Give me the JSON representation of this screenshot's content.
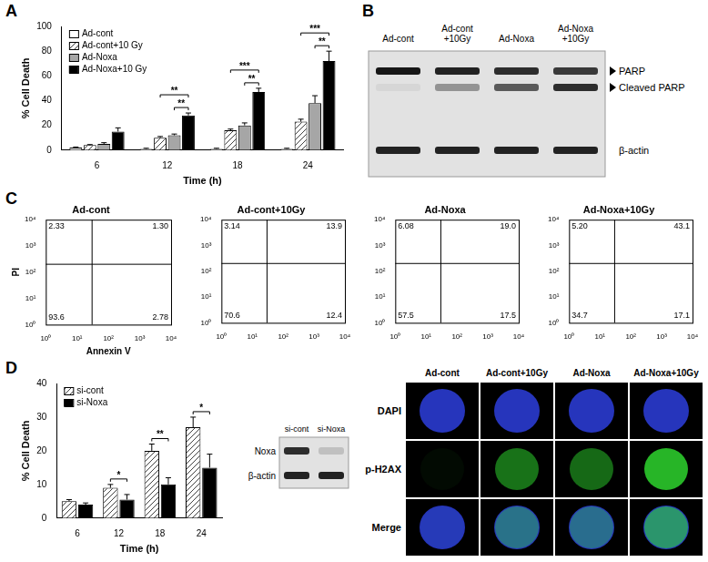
{
  "panel_letters": [
    "A",
    "B",
    "C",
    "D"
  ],
  "chart_data": [
    {
      "type": "bar",
      "x_label": "Time (h)",
      "y_label": "% Cell Death",
      "categories": [
        "6",
        "12",
        "18",
        "24"
      ],
      "series": [
        {
          "name": "Ad-cont",
          "color": "#ffffff",
          "values": [
            2,
            1,
            1,
            1
          ],
          "error": [
            0.5,
            0.5,
            0.5,
            0.5
          ]
        },
        {
          "name": "Ad-cont+10 Gy",
          "color": "#404040",
          "line_style": "hatched",
          "values": [
            4,
            10,
            16,
            23
          ],
          "error": [
            0.5,
            1,
            1,
            2
          ]
        },
        {
          "name": "Ad-Noxa",
          "color": "#a6a6a6",
          "values": [
            5,
            12,
            20,
            38
          ],
          "error": [
            1,
            1,
            2,
            6
          ]
        },
        {
          "name": "Ad-Noxa+10 Gy",
          "color": "#000000",
          "values": [
            15,
            28,
            47,
            72
          ],
          "error": [
            3,
            2,
            3,
            8
          ]
        }
      ],
      "ylim": [
        0,
        100
      ],
      "yticks": [
        0,
        20,
        40,
        60,
        80,
        100
      ],
      "grid": false,
      "legend": "top-left",
      "brackets": [
        {
          "x": "12",
          "from": "Ad-cont+10 Gy",
          "to": "Ad-Noxa+10 Gy",
          "text": "**"
        },
        {
          "x": "12",
          "from": "Ad-Noxa",
          "to": "Ad-Noxa+10 Gy",
          "text": "**"
        },
        {
          "x": "18",
          "from": "Ad-cont+10 Gy",
          "to": "Ad-Noxa+10 Gy",
          "text": "***"
        },
        {
          "x": "18",
          "from": "Ad-Noxa",
          "to": "Ad-Noxa+10 Gy",
          "text": "**"
        },
        {
          "x": "24",
          "from": "Ad-cont+10 Gy",
          "to": "Ad-Noxa+10 Gy",
          "text": "***"
        },
        {
          "x": "24",
          "from": "Ad-Noxa",
          "to": "Ad-Noxa+10 Gy",
          "text": "**"
        }
      ]
    },
    {
      "type": "bar",
      "x_label": "Time (h)",
      "y_label": "% Cell Death",
      "categories": [
        "6",
        "12",
        "18",
        "24"
      ],
      "series": [
        {
          "name": "si-cont",
          "color": "#404040",
          "line_style": "hatched",
          "values": [
            5,
            9,
            20,
            27
          ],
          "error": [
            0.5,
            1,
            2,
            3
          ]
        },
        {
          "name": "si-Noxa",
          "color": "#000000",
          "values": [
            4,
            5.5,
            10,
            15
          ],
          "error": [
            0.5,
            1.5,
            2,
            4
          ]
        }
      ],
      "ylim": [
        0,
        40
      ],
      "yticks": [
        0,
        10,
        20,
        30,
        40
      ],
      "grid": false,
      "legend": "top-left",
      "brackets": [
        {
          "x": "12",
          "from": "si-cont",
          "to": "si-Noxa",
          "text": "*"
        },
        {
          "x": "18",
          "from": "si-cont",
          "to": "si-Noxa",
          "text": "**"
        },
        {
          "x": "24",
          "from": "si-cont",
          "to": "si-Noxa",
          "text": "*"
        }
      ]
    }
  ],
  "blot_B": {
    "lanes": [
      "Ad-cont",
      "Ad-cont+10Gy",
      "Ad-Noxa",
      "Ad-Noxa+10Gy"
    ],
    "rows": [
      {
        "label": "PARP",
        "arrow": true,
        "intensity": [
          0.9,
          0.85,
          0.8,
          0.75
        ]
      },
      {
        "label": "Cleaved PARP",
        "arrow": true,
        "intensity": [
          0.05,
          0.35,
          0.6,
          0.8
        ]
      },
      {
        "label": "β-actin",
        "arrow": false,
        "intensity": [
          0.85,
          0.85,
          0.85,
          0.85
        ]
      }
    ]
  },
  "flow_C": {
    "type": "scatter",
    "x_label": "Annexin V",
    "y_label": "PI",
    "log": true,
    "xlim": [
      1,
      10000
    ],
    "ylim": [
      1,
      10000
    ],
    "xticks": [
      {
        "value": 1,
        "label": "10⁰"
      },
      {
        "value": 10,
        "label": "10¹"
      },
      {
        "value": 100,
        "label": "10²"
      },
      {
        "value": 1000,
        "label": "10³"
      },
      {
        "value": 10000,
        "label": "10⁴"
      }
    ],
    "yticks": [
      {
        "value": 1,
        "label": "10⁰"
      },
      {
        "value": 10,
        "label": "10¹"
      },
      {
        "value": 100,
        "label": "10²"
      },
      {
        "value": 1000,
        "label": "10³"
      },
      {
        "value": 10000,
        "label": "10⁴"
      }
    ],
    "gate": {
      "x": 30,
      "y": 200
    },
    "plots": [
      {
        "title": "Ad-cont",
        "values": [
          2.33,
          1.3,
          93.6,
          2.78
        ],
        "value_labels": [
          "2.33",
          "1.30",
          "93.6",
          "2.78"
        ]
      },
      {
        "title": "Ad-cont+10Gy",
        "values": [
          3.14,
          13.9,
          70.6,
          12.4
        ],
        "value_labels": [
          "3.14",
          "13.9",
          "70.6",
          "12.4"
        ]
      },
      {
        "title": "Ad-Noxa",
        "values": [
          6.08,
          19.0,
          57.5,
          17.5
        ],
        "value_labels": [
          "6.08",
          "19.0",
          "57.5",
          "17.5"
        ]
      },
      {
        "title": "Ad-Noxa+10Gy",
        "values": [
          5.2,
          43.1,
          34.7,
          17.1
        ],
        "value_labels": [
          "5.20",
          "43.1",
          "34.7",
          "17.1"
        ]
      }
    ]
  },
  "blot_D": {
    "lanes": [
      "si-cont",
      "si-Noxa"
    ],
    "rows": [
      {
        "label": "Noxa",
        "intensity": [
          0.8,
          0.15
        ]
      },
      {
        "label": "β-actin",
        "intensity": [
          0.85,
          0.85
        ]
      }
    ]
  },
  "images": {
    "columns": [
      "Ad-cont",
      "Ad-cont+10Gy",
      "Ad-Noxa",
      "Ad-Noxa+10Gy"
    ],
    "rows": [
      "DAPI",
      "p-H2AX",
      "Merge"
    ],
    "p-H2AX_intensity": [
      0.05,
      0.6,
      0.55,
      0.95
    ]
  }
}
